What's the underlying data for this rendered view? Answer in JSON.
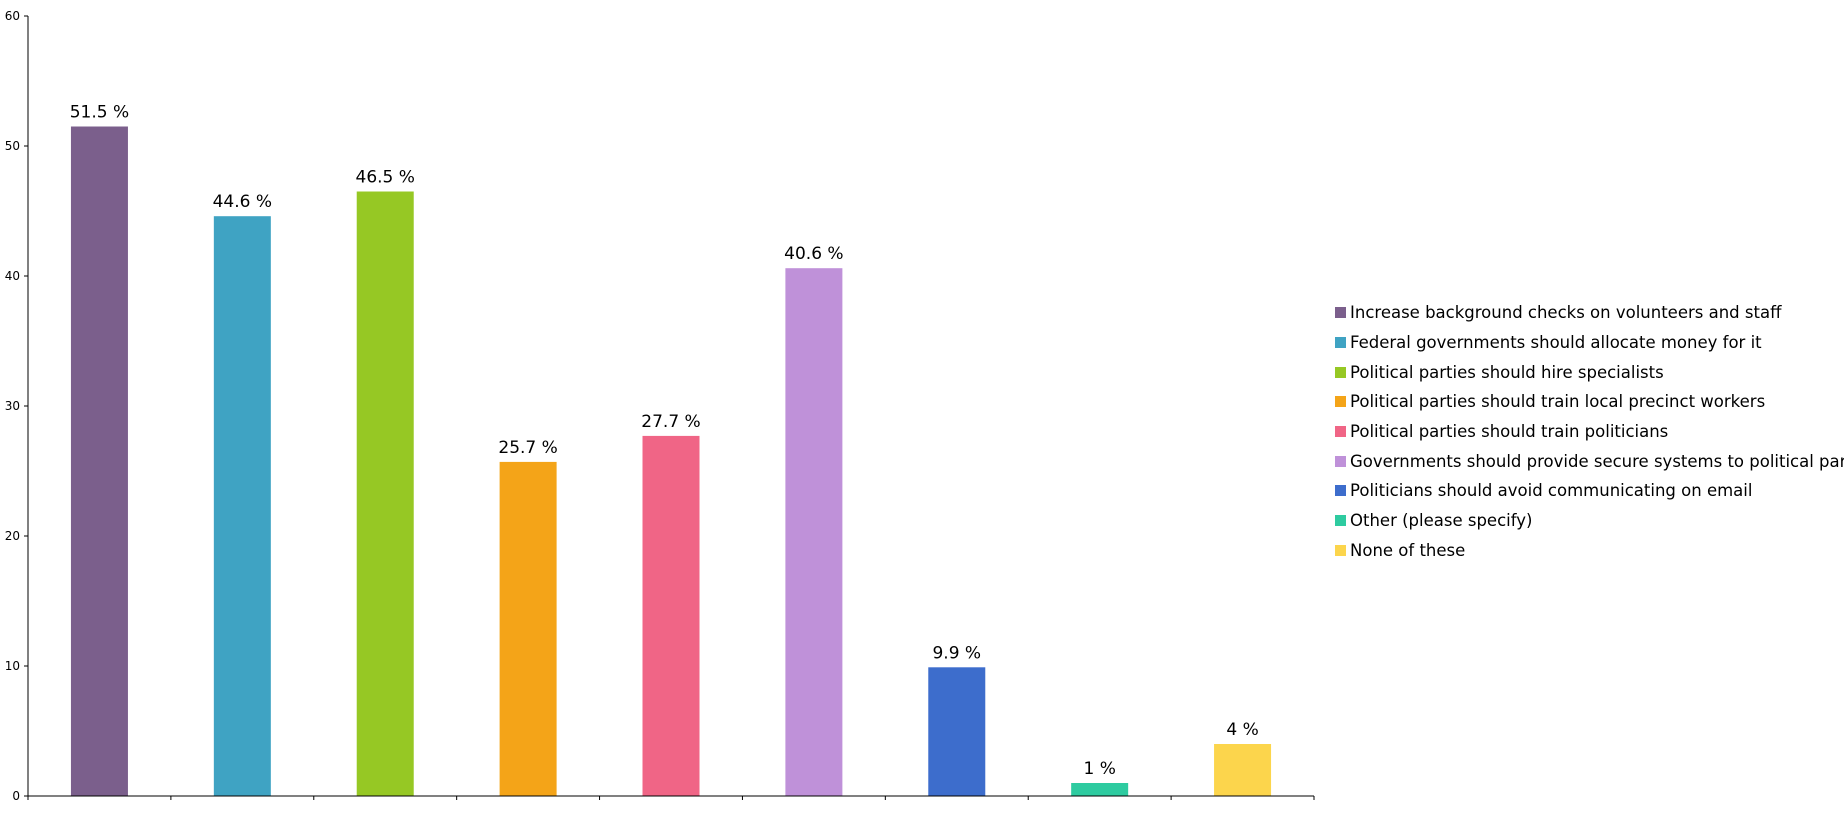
{
  "chart_data": {
    "type": "bar",
    "categories": [
      "Increase background checks on volunteers and staff",
      "Federal governments should allocate money for it",
      "Political parties should hire specialists",
      "Political parties should train local precinct workers",
      "Political parties should train politicians",
      "Governments should provide secure systems to political parties",
      "Politicians should avoid communicating on email",
      "Other (please specify)",
      "None of these"
    ],
    "values": [
      51.5,
      44.6,
      46.5,
      25.7,
      27.7,
      40.6,
      9.9,
      1,
      4
    ],
    "data_labels": [
      "51.5 %",
      "44.6 %",
      "46.5 %",
      "25.7 %",
      "27.7 %",
      "40.6 %",
      "9.9 %",
      "1 %",
      "4 %"
    ],
    "colors": [
      "#7b5f8c",
      "#3fa3c3",
      "#96c824",
      "#f4a418",
      "#f06586",
      "#bf91d9",
      "#3d6dcc",
      "#2ecba0",
      "#fcd54c"
    ],
    "yticks": [
      0,
      10,
      20,
      30,
      40,
      50,
      60
    ],
    "ylim": [
      0,
      60
    ],
    "title": "",
    "xlabel": "",
    "ylabel": "",
    "grid": false,
    "legend": "right"
  }
}
